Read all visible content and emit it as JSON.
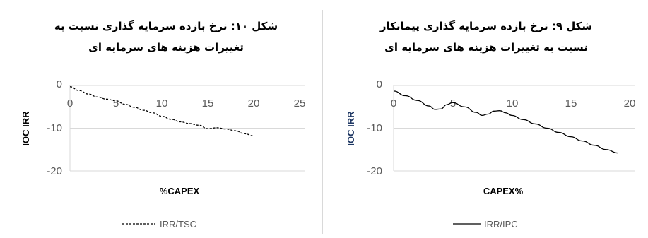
{
  "charts": [
    {
      "title_line1": "شکل ۱۰: نرخ بازده سرمایه گذاری نسبت به",
      "title_line2": "تغییرات هزینه های سرمایه ای",
      "xlabel": "%CAPEX",
      "ylabel": "IOC IRR",
      "ylabel_color": "#000000",
      "x_ticks": [
        "0",
        "5",
        "10",
        "15",
        "20",
        "25"
      ],
      "y_ticks": [
        "0",
        "-10",
        "-20"
      ],
      "legend": "IRR/TSC"
    },
    {
      "title_line1": "شکل ۹: نرخ بازده سرمایه گذاری پیمانکار",
      "title_line2": "نسبت به تغییرات هزینه های سرمایه ای",
      "xlabel": "CAPEX%",
      "ylabel": "IOC IRR",
      "ylabel_color": "#1f3864",
      "x_ticks": [
        "0",
        "5",
        "10",
        "15",
        "20"
      ],
      "y_ticks": [
        "0",
        "-10",
        "-20"
      ],
      "legend": "IRR/IPC"
    }
  ],
  "chart_data": [
    {
      "type": "line",
      "title": "شکل ۱۰: نرخ بازده سرمایه گذاری نسبت به تغییرات هزینه های سرمایه ای",
      "xlabel": "%CAPEX",
      "ylabel": "IOC IRR",
      "xlim": [
        0,
        25
      ],
      "ylim": [
        -20,
        0
      ],
      "grid": "horizontal",
      "legend_position": "bottom",
      "series": [
        {
          "name": "IRR/TSC",
          "line_style": "dashed",
          "color": "#000000",
          "x": [
            0,
            1,
            2,
            3,
            4,
            5,
            6,
            7,
            8,
            9,
            10,
            11,
            12,
            13,
            14,
            15,
            16,
            17,
            18,
            19,
            20
          ],
          "y": [
            -0.3,
            -1.2,
            -2.0,
            -2.7,
            -3.2,
            -3.6,
            -4.4,
            -5.1,
            -5.8,
            -6.4,
            -7.2,
            -7.9,
            -8.5,
            -8.9,
            -9.3,
            -10.1,
            -9.9,
            -10.2,
            -10.6,
            -11.3,
            -11.8
          ]
        }
      ]
    },
    {
      "type": "line",
      "title": "شکل ۹: نرخ بازده سرمایه گذاری پیمانکار نسبت به تغییرات هزینه های سرمایه ای",
      "xlabel": "CAPEX%",
      "ylabel": "IOC IRR",
      "xlim": [
        0,
        20
      ],
      "ylim": [
        -20,
        0
      ],
      "grid": "horizontal",
      "legend_position": "bottom",
      "series": [
        {
          "name": "IRR/IPC",
          "line_style": "solid",
          "color": "#000000",
          "x": [
            0,
            1,
            2,
            3,
            3.5,
            4,
            4.5,
            5,
            6,
            7,
            7.5,
            8,
            8.5,
            9,
            9.5,
            10,
            11,
            12,
            13,
            14,
            15,
            16,
            17,
            18,
            19
          ],
          "y": [
            -1.3,
            -2.4,
            -3.5,
            -4.8,
            -5.6,
            -5.5,
            -4.5,
            -4.0,
            -5.0,
            -6.3,
            -7.0,
            -6.7,
            -6.0,
            -5.9,
            -6.4,
            -7.0,
            -8.0,
            -9.0,
            -10.0,
            -11.0,
            -12.0,
            -13.0,
            -14.0,
            -15.0,
            -15.8
          ]
        }
      ]
    }
  ]
}
